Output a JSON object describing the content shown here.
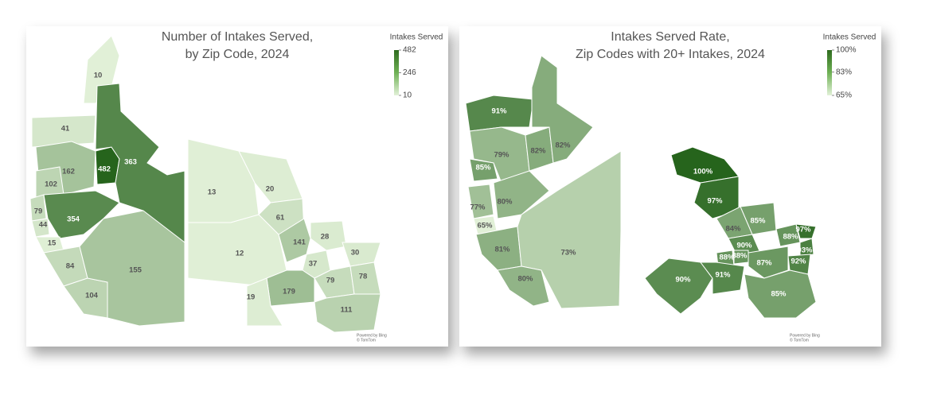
{
  "maps": [
    {
      "title": [
        "Number of Intakes Served,",
        "by Zip Code, 2024"
      ],
      "legend": {
        "title": "Intakes Served",
        "ticks": [
          482,
          246,
          10
        ]
      },
      "values": [
        10,
        41,
        162,
        482,
        363,
        102,
        79,
        354,
        44,
        15,
        84,
        104,
        155,
        13,
        20,
        61,
        12,
        141,
        28,
        37,
        30,
        79,
        78,
        179,
        19,
        111
      ],
      "credit": [
        "Powered by Bing",
        "© TomTom"
      ]
    },
    {
      "title": [
        "Intakes Served Rate,",
        "Zip Codes with 20+ Intakes, 2024"
      ],
      "legend": {
        "title": "Intakes Served",
        "ticks": [
          {
            "value": 100,
            "label": "100%"
          },
          {
            "value": 83,
            "label": "83%"
          },
          {
            "value": 65,
            "label": "65%"
          }
        ]
      },
      "values": [
        91,
        79,
        82,
        82,
        85,
        80,
        77,
        65,
        81,
        73,
        80,
        100,
        97,
        85,
        84,
        88,
        97,
        90,
        93,
        88,
        88,
        92,
        87,
        90,
        91,
        85
      ],
      "value_labels": [
        "91%",
        "79%",
        "82%",
        "82%",
        "85%",
        "80%",
        "77%",
        "65%",
        "81%",
        "73%",
        "80%",
        "100%",
        "97%",
        "85%",
        "84%",
        "88%",
        "97%",
        "90%",
        "93%",
        "88%",
        "88%",
        "92%",
        "87%",
        "90%",
        "91%",
        "85%"
      ],
      "credit": [
        "Powered by Bing",
        "© TomTom"
      ]
    }
  ]
}
